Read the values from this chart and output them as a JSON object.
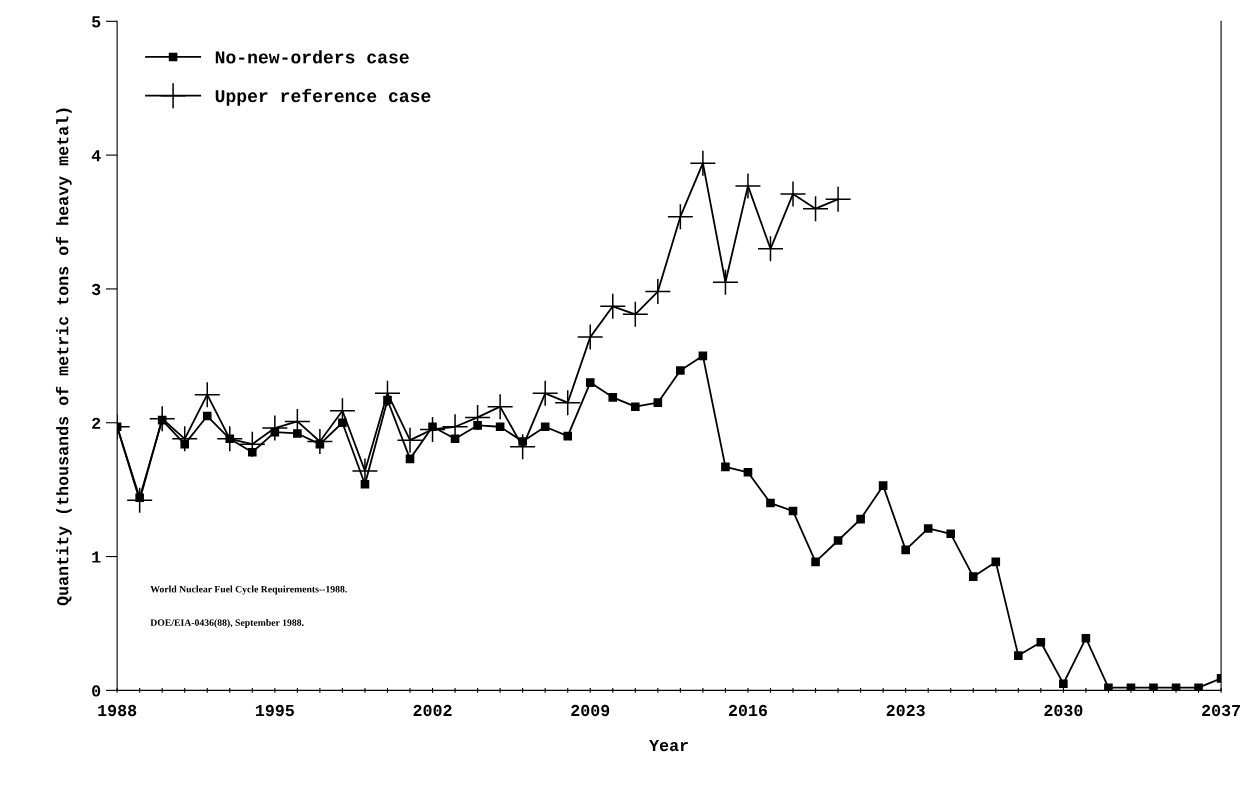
{
  "chart_data": {
    "type": "line",
    "xlabel": "Year",
    "ylabel": "Quantity (thousands of metric tons of heavy metal)",
    "x": [
      1988,
      1989,
      1990,
      1991,
      1992,
      1993,
      1994,
      1995,
      1996,
      1997,
      1998,
      1999,
      2000,
      2001,
      2002,
      2003,
      2004,
      2005,
      2006,
      2007,
      2008,
      2009,
      2010,
      2011,
      2012,
      2013,
      2014,
      2015,
      2016,
      2017,
      2018,
      2019,
      2020,
      2021,
      2022,
      2023,
      2024,
      2025,
      2026,
      2027,
      2028,
      2029,
      2030,
      2031,
      2032,
      2033,
      2034,
      2035,
      2036,
      2037
    ],
    "series": [
      {
        "name": "No-new-orders case",
        "color": "#000000",
        "marker": "square",
        "values": [
          1.97,
          1.44,
          2.02,
          1.84,
          2.05,
          1.88,
          1.78,
          1.93,
          1.92,
          1.84,
          2.0,
          1.54,
          2.17,
          1.73,
          1.97,
          1.88,
          1.98,
          1.97,
          1.86,
          1.97,
          1.9,
          2.3,
          2.19,
          2.12,
          2.15,
          2.39,
          2.5,
          1.67,
          1.63,
          1.4,
          1.34,
          0.96,
          1.12,
          1.28,
          1.53,
          1.05,
          1.21,
          1.17,
          0.85,
          0.96,
          0.26,
          0.36,
          0.05,
          0.39,
          0.02,
          0.02,
          0.02,
          0.02,
          0.02,
          0.09
        ]
      },
      {
        "name": "Upper reference case",
        "color": "#000000",
        "marker": "cross",
        "values": [
          1.97,
          1.42,
          2.03,
          1.88,
          2.21,
          1.88,
          1.84,
          1.96,
          2.01,
          1.86,
          2.09,
          1.64,
          2.22,
          1.87,
          1.95,
          1.97,
          2.04,
          2.12,
          1.82,
          2.22,
          2.15,
          2.64,
          2.87,
          2.81,
          2.98,
          3.54,
          3.94,
          3.05,
          3.77,
          3.3,
          3.71,
          3.6,
          3.67,
          null,
          null,
          null,
          null,
          null,
          null,
          null,
          null,
          null,
          null,
          null,
          null,
          null,
          null,
          null,
          null,
          null
        ]
      }
    ],
    "xlim": [
      1988,
      2037
    ],
    "xticks": [
      1988,
      {
        "value": 1989,
        "label": null
      },
      {
        "value": 1990,
        "label": null
      },
      {
        "value": 1991,
        "label": null
      },
      {
        "value": 1992,
        "label": null
      },
      {
        "value": 1993,
        "label": null
      },
      {
        "value": 1994,
        "label": null
      },
      1995,
      {
        "value": 1996,
        "label": null
      },
      {
        "value": 1997,
        "label": null
      },
      {
        "value": 1998,
        "label": null
      },
      {
        "value": 1999,
        "label": null
      },
      {
        "value": 2000,
        "label": null
      },
      {
        "value": 2001,
        "label": null
      },
      2002,
      {
        "value": 2003,
        "label": null
      },
      {
        "value": 2004,
        "label": null
      },
      {
        "value": 2005,
        "label": null
      },
      {
        "value": 2006,
        "label": null
      },
      {
        "value": 2007,
        "label": null
      },
      {
        "value": 2008,
        "label": null
      },
      2009,
      {
        "value": 2010,
        "label": null
      },
      {
        "value": 2011,
        "label": null
      },
      {
        "value": 2012,
        "label": null
      },
      {
        "value": 2013,
        "label": null
      },
      {
        "value": 2014,
        "label": null
      },
      {
        "value": 2015,
        "label": null
      },
      2016,
      {
        "value": 2017,
        "label": null
      },
      {
        "value": 2018,
        "label": null
      },
      {
        "value": 2019,
        "label": null
      },
      {
        "value": 2020,
        "label": null
      },
      {
        "value": 2021,
        "label": null
      },
      {
        "value": 2022,
        "label": null
      },
      2023,
      {
        "value": 2024,
        "label": null
      },
      {
        "value": 2025,
        "label": null
      },
      {
        "value": 2026,
        "label": null
      },
      {
        "value": 2027,
        "label": null
      },
      {
        "value": 2028,
        "label": null
      },
      {
        "value": 2029,
        "label": null
      },
      2030,
      {
        "value": 2031,
        "label": null
      },
      {
        "value": 2032,
        "label": null
      },
      {
        "value": 2033,
        "label": null
      },
      {
        "value": 2034,
        "label": null
      },
      {
        "value": 2035,
        "label": null
      },
      {
        "value": 2036,
        "label": null
      },
      2037
    ],
    "ylim": [
      0,
      5
    ],
    "yticks": [
      0,
      1,
      2,
      3,
      4,
      5
    ],
    "grid": false,
    "legend": "top left",
    "line_style": "solid",
    "annotations": [
      "World Nuclear Fuel Cycle Requirements--1988.",
      "DOE/EIA-0436(88), September 1988."
    ]
  }
}
